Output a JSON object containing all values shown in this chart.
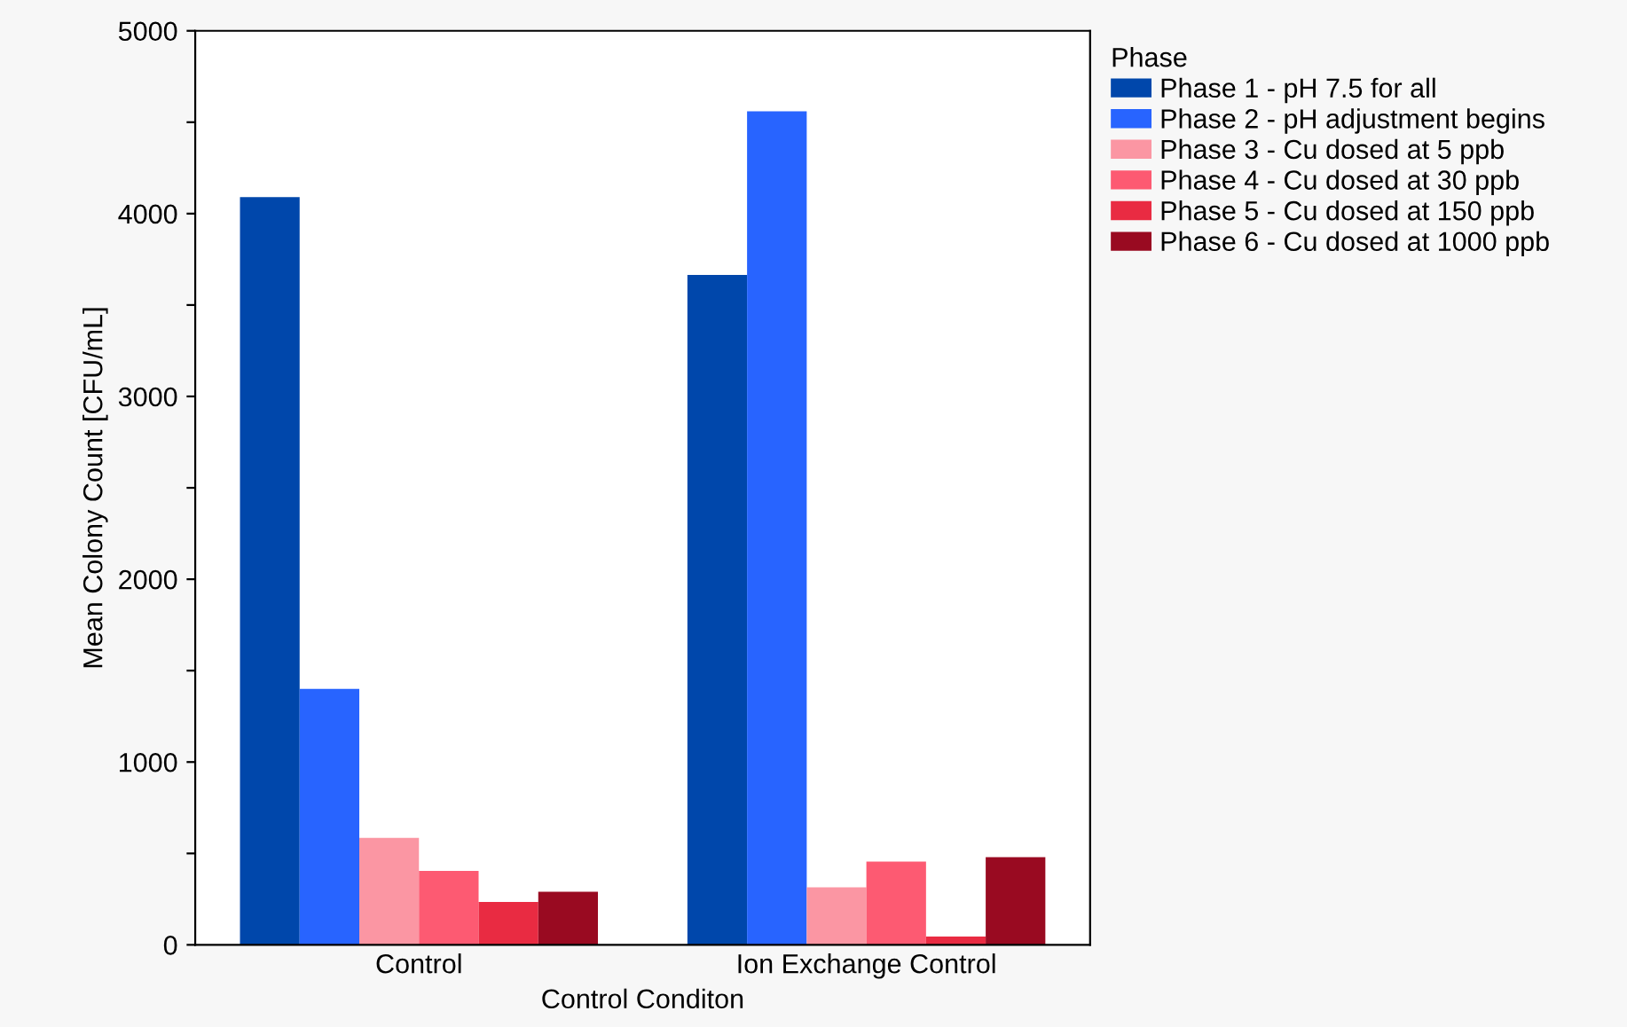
{
  "chart_data": {
    "type": "bar",
    "xlabel": "Control Conditon",
    "ylabel": "Mean Colony Count [CFU/mL]",
    "legend_title": "Phase",
    "categories": [
      "Control",
      "Ion Exchange Control"
    ],
    "series": [
      {
        "name": "Phase 1 - pH 7.5 for all",
        "color": "#0047ab",
        "values": [
          4090,
          3665
        ]
      },
      {
        "name": "Phase 2 - pH adjustment begins",
        "color": "#2864ff",
        "values": [
          1400,
          4560
        ]
      },
      {
        "name": "Phase 3 - Cu dosed at 5 ppb",
        "color": "#fb96a3",
        "values": [
          585,
          315
        ]
      },
      {
        "name": "Phase 4 - Cu dosed at 30 ppb",
        "color": "#fd5a72",
        "values": [
          405,
          455
        ]
      },
      {
        "name": "Phase 5 - Cu dosed at 150 ppb",
        "color": "#e92b42",
        "values": [
          235,
          45
        ]
      },
      {
        "name": "Phase 6 - Cu dosed at 1000 ppb",
        "color": "#990a21",
        "values": [
          290,
          480
        ]
      }
    ],
    "ylim": [
      0,
      5000
    ],
    "yticks": [
      0,
      {
        "value": 500,
        "label": null
      },
      1000,
      {
        "value": 1500,
        "label": null
      },
      2000,
      {
        "value": 2500,
        "label": null
      },
      3000,
      {
        "value": 3500,
        "label": null
      },
      4000,
      {
        "value": 4500,
        "label": null
      },
      5000
    ],
    "grid": false,
    "legend": "top right"
  }
}
